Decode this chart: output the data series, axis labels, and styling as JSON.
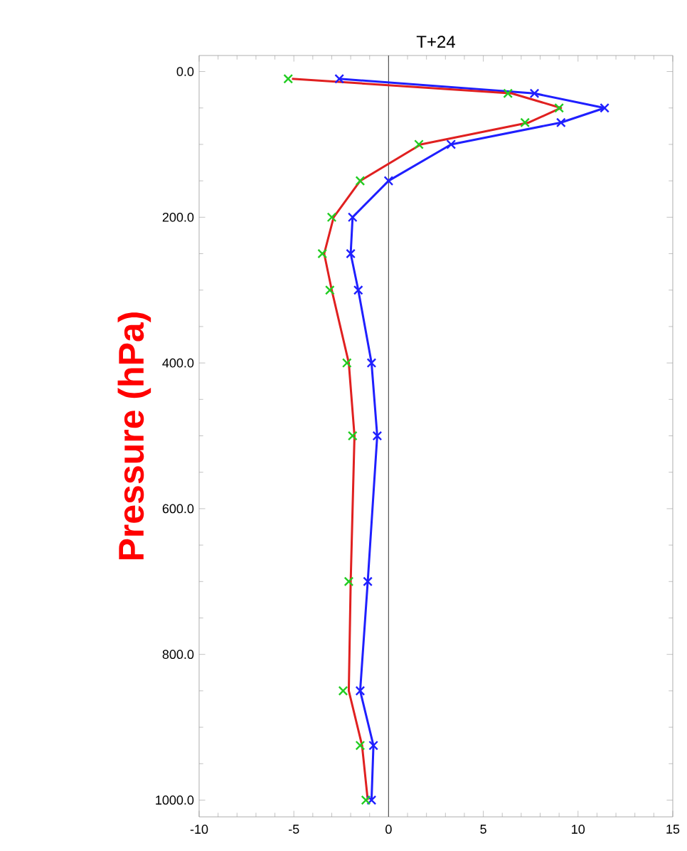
{
  "chart_data": {
    "type": "line",
    "title": "T+24",
    "ylabel": "Pressure (hPa)",
    "x": [
      10,
      30,
      50,
      70,
      100,
      150,
      200,
      250,
      300,
      400,
      500,
      700,
      850,
      925,
      1000
    ],
    "orientation": "horizontal",
    "series": [
      {
        "color": "#1f1fff",
        "marker": "cross",
        "line_style": "solid",
        "values": [
          -2.6,
          7.7,
          11.4,
          9.1,
          3.3,
          0.0,
          -1.9,
          -2.0,
          -1.6,
          -0.9,
          -0.6,
          -1.1,
          -1.5,
          -0.8,
          -0.9
        ]
      },
      {
        "type": "scatter",
        "color": "#22cc22",
        "marker": "cross",
        "values": [
          -5.3,
          6.3,
          9.0,
          7.2,
          1.6,
          -1.5,
          -3.0,
          -3.5,
          -3.1,
          -2.2,
          -1.9,
          -2.1,
          -2.4,
          -1.5,
          -1.2
        ]
      },
      {
        "color": "#e02020",
        "marker": "none",
        "line_style": "solid",
        "values": [
          -5.1,
          6.5,
          9.1,
          7.4,
          1.7,
          -1.5,
          -2.9,
          -3.4,
          -3.0,
          -2.1,
          -1.8,
          -2.0,
          -2.1,
          -1.4,
          -1.1
        ]
      }
    ],
    "xlim": [
      -10,
      15
    ],
    "xticks": [
      -10,
      -5,
      0,
      5,
      10,
      15
    ],
    "ylim": [
      1023,
      -22
    ],
    "yticks": [
      {
        "value": 0,
        "label": "0.0"
      },
      {
        "value": 200,
        "label": "200.0"
      },
      {
        "value": 400,
        "label": "400.0"
      },
      {
        "value": 600,
        "label": "600.0"
      },
      {
        "value": 800,
        "label": "800.0"
      },
      {
        "value": 1000,
        "label": "1000.0"
      }
    ],
    "ref_lines": [
      {
        "axis": "x",
        "value": 0,
        "color": "#555555"
      }
    ]
  }
}
